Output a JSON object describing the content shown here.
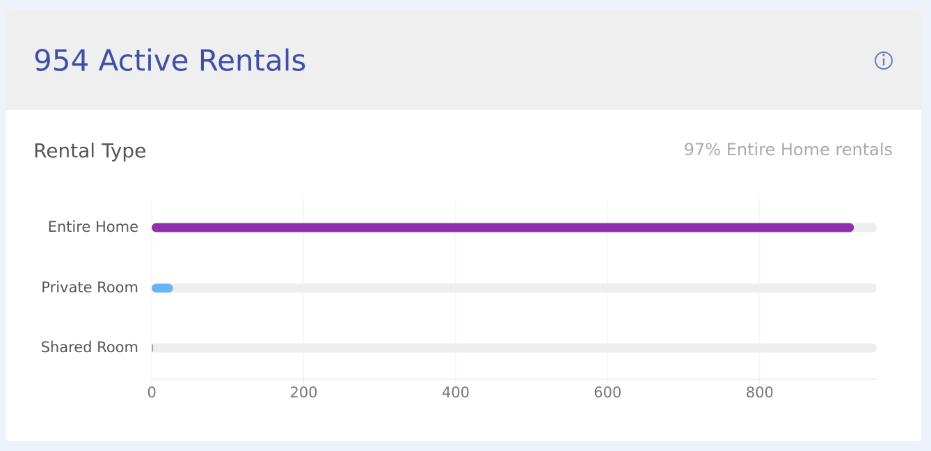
{
  "header": {
    "title": "954 Active Rentals"
  },
  "chart_data": {
    "type": "hbar",
    "title": "Rental Type",
    "subtitle": "97% Entire Home rentals",
    "categories": [
      "Entire Home",
      "Private Room",
      "Shared Room"
    ],
    "values": [
      924,
      28,
      2
    ],
    "colors": [
      "#8e2fab",
      "#6ab4f5",
      "#9aa6b8"
    ],
    "xlim": [
      0,
      954
    ],
    "xticks": [
      0,
      200,
      400,
      600,
      800
    ],
    "grid": true
  }
}
